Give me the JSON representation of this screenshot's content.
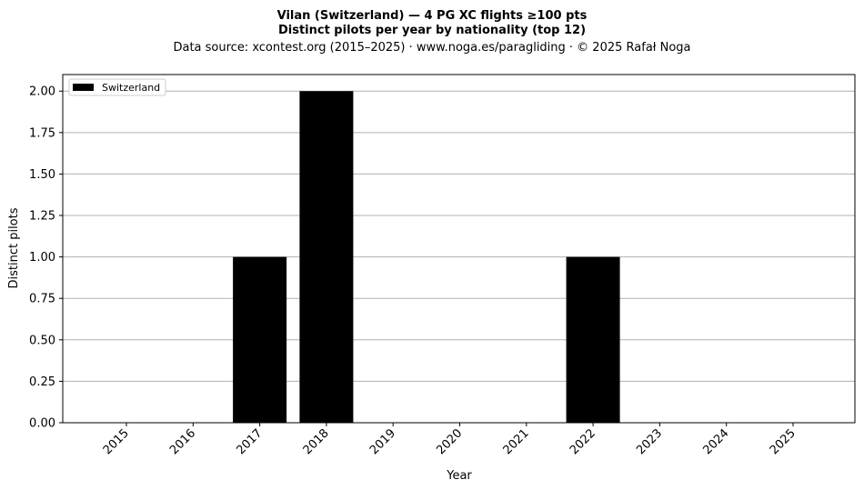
{
  "chart_data": {
    "type": "bar",
    "title_line1": "Vilan (Switzerland)  —  4 PG XC flights ≥100 pts",
    "title_line2": "Distinct pilots per year by nationality (top 12)",
    "subtitle": "Data source: xcontest.org (2015–2025)  ·  www.noga.es/paragliding  ·  © 2025 Rafał Noga",
    "xlabel": "Year",
    "ylabel": "Distinct pilots",
    "categories": [
      "2015",
      "2016",
      "2017",
      "2018",
      "2019",
      "2020",
      "2021",
      "2022",
      "2023",
      "2024",
      "2025"
    ],
    "series": [
      {
        "name": "Switzerland",
        "color": "#000000",
        "values": [
          0,
          0,
          1,
          2,
          0,
          0,
          0,
          1,
          0,
          0,
          0
        ]
      }
    ],
    "ylim": [
      0,
      2.1
    ],
    "yticks": [
      "0.00",
      "0.25",
      "0.50",
      "0.75",
      "1.00",
      "1.25",
      "1.50",
      "1.75",
      "2.00"
    ],
    "grid": "y",
    "legend_position": "top-left"
  }
}
